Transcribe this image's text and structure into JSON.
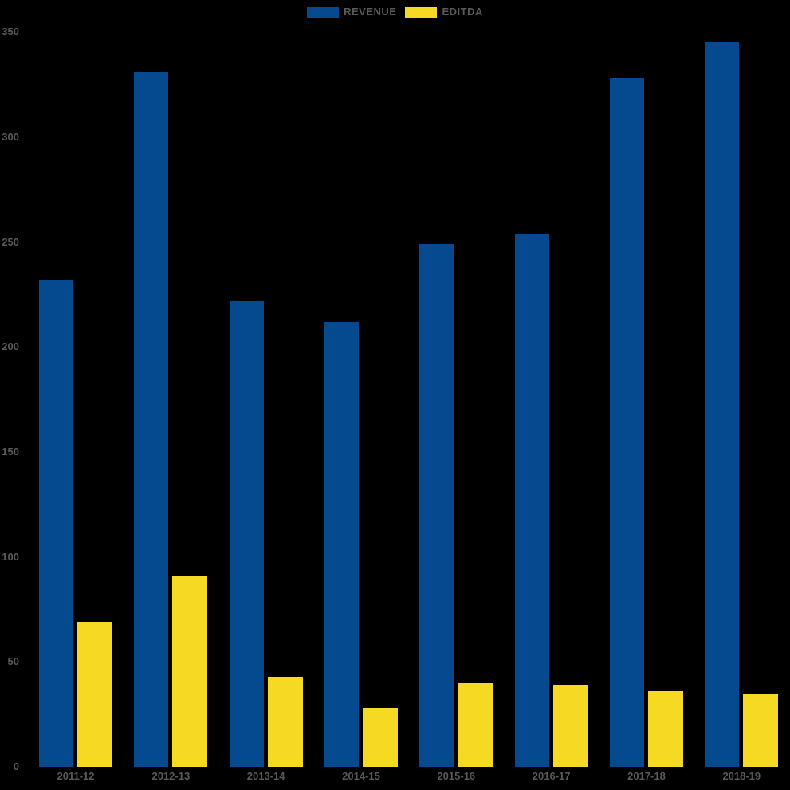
{
  "chart_data": {
    "type": "bar",
    "categories": [
      "2011-12",
      "2012-13",
      "2013-14",
      "2014-15",
      "2015-16",
      "2016-17",
      "2017-18",
      "2018-19"
    ],
    "series": [
      {
        "name": "REVENUE",
        "color": "#054A8F",
        "values": [
          232,
          331,
          222,
          212,
          249,
          254,
          328,
          345
        ]
      },
      {
        "name": "EDITDA",
        "color": "#F5D922",
        "values": [
          69,
          91,
          43,
          28,
          40,
          39,
          36,
          35
        ]
      }
    ],
    "ylim": [
      0,
      350
    ],
    "yticks": [
      0,
      50,
      100,
      150,
      200,
      250,
      300,
      350
    ],
    "legend_position": "top",
    "grid": false,
    "background_color": "#000000",
    "text_color": "#595959"
  }
}
